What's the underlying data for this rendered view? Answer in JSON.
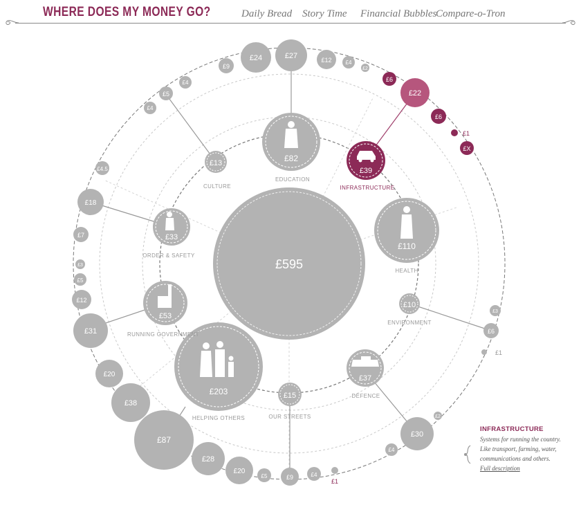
{
  "header": {
    "logo": "WHERE DOES MY MONEY GO?",
    "nav": [
      "Daily Bread",
      "Story Time",
      "Financial Bubbles",
      "Compare-o-Tron"
    ]
  },
  "center": {
    "label": "£595"
  },
  "categories": [
    {
      "name": "Education",
      "label": "£82",
      "title": "EDUCATION",
      "icon": "student-icon"
    },
    {
      "name": "Infrastructure",
      "label": "£39",
      "title": "INFRASTRUCTURE",
      "icon": "car-icon",
      "selected": true
    },
    {
      "name": "Health",
      "label": "£110",
      "title": "HEALTH",
      "icon": "doctor-icon"
    },
    {
      "name": "Environment",
      "label": "£10",
      "title": "ENVIRONMENT",
      "icon": ""
    },
    {
      "name": "Defence",
      "label": "£37",
      "title": "DEFENCE",
      "icon": "tank-icon"
    },
    {
      "name": "Our Streets",
      "label": "£15",
      "title": "OUR STREETS",
      "icon": ""
    },
    {
      "name": "Helping Others",
      "label": "£203",
      "title": "HELPING OTHERS",
      "icon": "family-icon"
    },
    {
      "name": "Running Government",
      "label": "£53",
      "title": "RUNNING GOVERNMENT",
      "icon": "parliament-icon"
    },
    {
      "name": "Order & Safety",
      "label": "£33",
      "title": "ORDER & SAFETY",
      "icon": "police-icon"
    },
    {
      "name": "Culture",
      "label": "£13",
      "title": "CULTURE",
      "icon": ""
    }
  ],
  "outer": {
    "o_9": "£9",
    "o_24": "£24",
    "o_27": "£27",
    "o_12a": "£12",
    "o_4a": "£4",
    "o_2a": "£2",
    "o_6a": "£6",
    "o_22": "£22",
    "o_6b": "£6",
    "o_1a": "£1",
    "o_x": "£X",
    "o_5a": "£5",
    "o_4b": "£4",
    "o_4c": "£4",
    "o_45": "£4.5",
    "o_18": "£18",
    "o_7": "£7",
    "o_3a": "£3",
    "o_5b": "£5",
    "o_12b": "£12",
    "o_31": "£31",
    "o_20a": "£20",
    "o_38": "£38",
    "o_87": "£87",
    "o_28": "£28",
    "o_20b": "£20",
    "o_5c": "£5",
    "o_9b": "£9",
    "o_4d": "£4",
    "o_1b": "£1",
    "o_3b": "£3",
    "o_6c": "£6",
    "o_1c": "£1",
    "o_2b": "£2",
    "o_30": "£30",
    "o_4e": "£4"
  },
  "info": {
    "title": "INFRASTRUCTURE",
    "description": "Systems for running the country. Like transport, farming, water, communications and others.",
    "link": "Full description"
  },
  "colors": {
    "accent": "#8c2a57",
    "accent_light": "#b6567d",
    "bubble": "#b3b3b3"
  }
}
